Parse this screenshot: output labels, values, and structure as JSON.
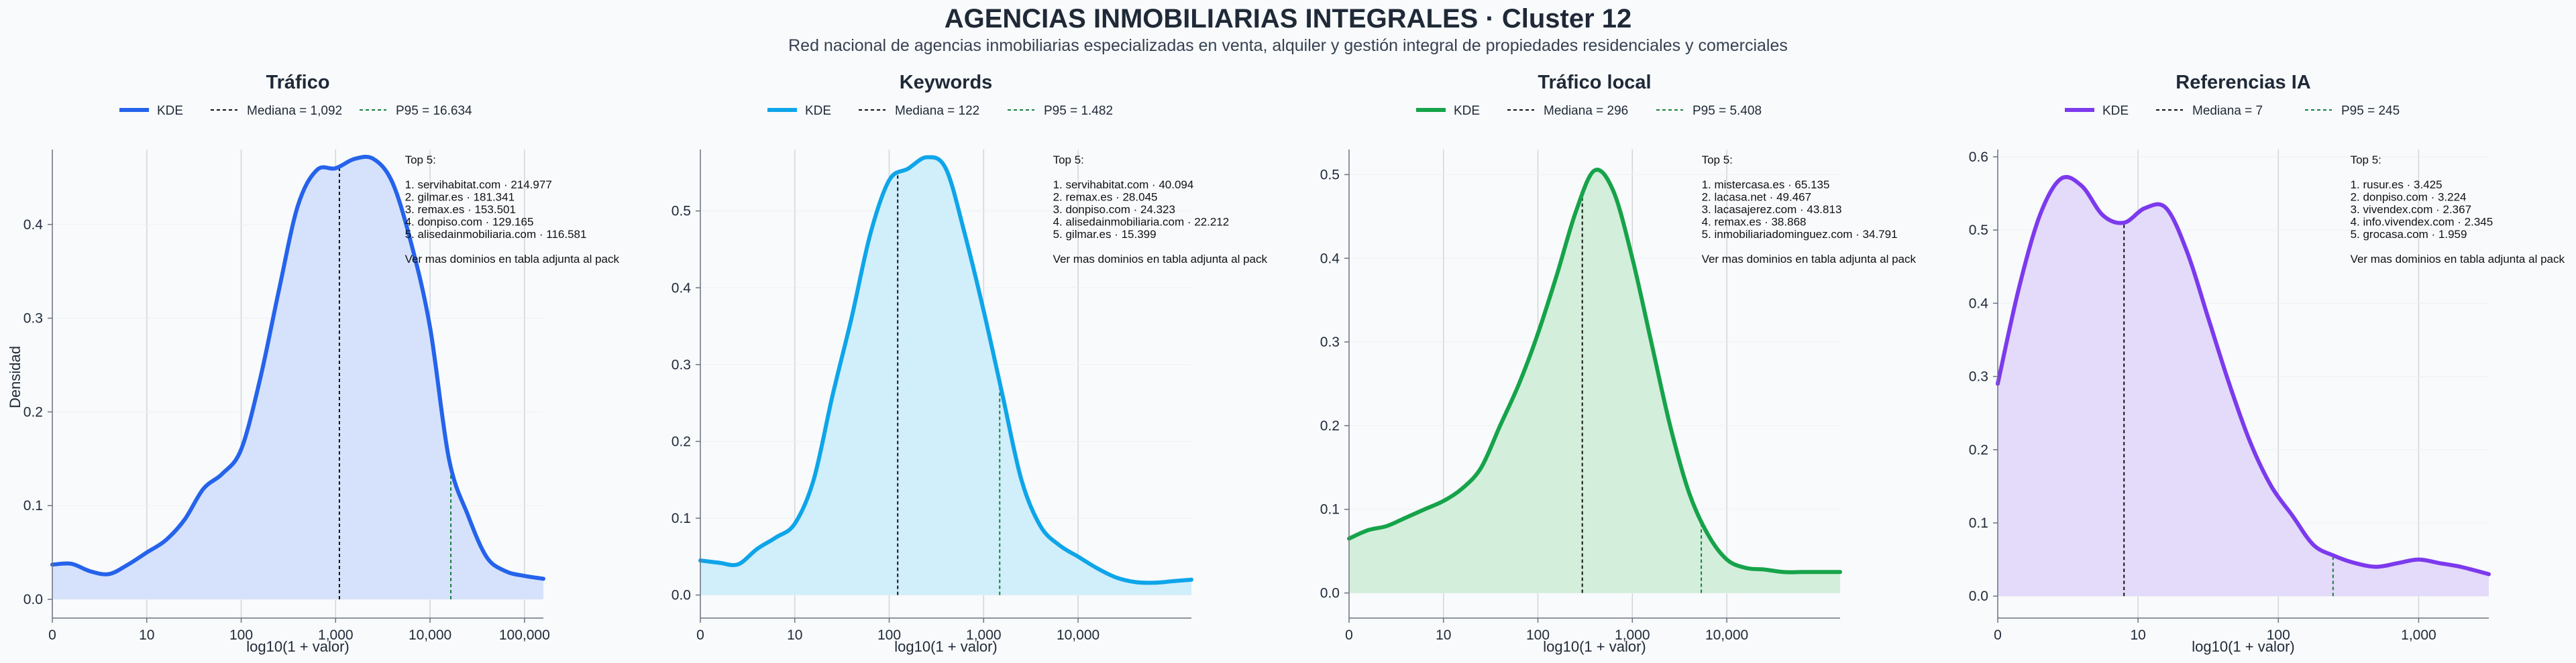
{
  "header": {
    "title": "AGENCIAS INMOBILIARIAS INTEGRALES · Cluster 12",
    "subtitle": "Red nacional de agencias inmobiliarias especializadas en venta, alquiler y gestión integral de propiedades residenciales y comerciales"
  },
  "colors": {
    "median_line": "#111111",
    "p95_line": "#15803d",
    "grid": "#d1d5db",
    "axis": "#6b7280"
  },
  "chart_data": [
    {
      "type": "area",
      "title": "Tráfico",
      "xlabel": "log10(1 + valor)",
      "ylabel": "Densidad",
      "color": "#2563eb",
      "fill": "#d6e2fb",
      "xlim": [
        0,
        5.2
      ],
      "ylim": [
        -0.02,
        0.48
      ],
      "x_ticks": [
        0,
        1,
        2,
        3,
        4,
        5
      ],
      "x_tick_labels": [
        "0",
        "10",
        "100",
        "1,000",
        "10,000",
        "100,000"
      ],
      "y_ticks": [
        0.0,
        0.1,
        0.2,
        0.3,
        0.4
      ],
      "y_tick_labels": [
        "0.0",
        "0.1",
        "0.2",
        "0.3",
        "0.4"
      ],
      "legend": [
        "KDE",
        "Mediana = 1,092",
        "P95 = 16.634"
      ],
      "median_x": 3.04,
      "p95_x": 4.22,
      "annotation": [
        "Top 5:",
        "",
        "1. servihabitat.com · 214.977",
        "2. gilmar.es · 181.341",
        "3. remax.es · 153.501",
        "4. donpiso.com · 129.165",
        "5. alisedainmobiliaria.com · 116.581",
        "",
        "Ver mas dominios en tabla adjunta al pack"
      ],
      "x": [
        0,
        0.2,
        0.4,
        0.6,
        0.8,
        1.0,
        1.2,
        1.4,
        1.6,
        1.8,
        2.0,
        2.2,
        2.4,
        2.6,
        2.8,
        3.0,
        3.2,
        3.4,
        3.6,
        3.8,
        4.0,
        4.2,
        4.4,
        4.6,
        4.8,
        5.0,
        5.2
      ],
      "y": [
        0.037,
        0.038,
        0.03,
        0.027,
        0.037,
        0.05,
        0.063,
        0.085,
        0.118,
        0.134,
        0.16,
        0.235,
        0.33,
        0.42,
        0.458,
        0.46,
        0.47,
        0.47,
        0.445,
        0.38,
        0.29,
        0.15,
        0.09,
        0.045,
        0.03,
        0.025,
        0.022
      ]
    },
    {
      "type": "area",
      "title": "Keywords",
      "xlabel": "log10(1 + valor)",
      "ylabel": "",
      "color": "#0ea5e9",
      "fill": "#d1eefb",
      "xlim": [
        0,
        5.2
      ],
      "ylim": [
        -0.03,
        0.58
      ],
      "x_ticks": [
        0,
        1,
        2,
        3,
        4
      ],
      "x_tick_labels": [
        "0",
        "10",
        "100",
        "1,000",
        "10,000"
      ],
      "y_ticks": [
        0.0,
        0.1,
        0.2,
        0.3,
        0.4,
        0.5
      ],
      "y_tick_labels": [
        "0.0",
        "0.1",
        "0.2",
        "0.3",
        "0.4",
        "0.5"
      ],
      "legend": [
        "KDE",
        "Mediana = 122",
        "P95 = 1.482"
      ],
      "median_x": 2.09,
      "p95_x": 3.17,
      "annotation": [
        "Top 5:",
        "",
        "1. servihabitat.com · 40.094",
        "2. remax.es · 28.045",
        "3. donpiso.com · 24.323",
        "4. alisedainmobiliaria.com · 22.212",
        "5. gilmar.es · 15.399",
        "",
        "Ver mas dominios en tabla adjunta al pack"
      ],
      "x": [
        0,
        0.2,
        0.4,
        0.6,
        0.8,
        1.0,
        1.2,
        1.4,
        1.6,
        1.8,
        2.0,
        2.2,
        2.4,
        2.6,
        2.8,
        3.0,
        3.2,
        3.4,
        3.6,
        3.8,
        4.0,
        4.2,
        4.4,
        4.6,
        4.8,
        5.0,
        5.2
      ],
      "y": [
        0.045,
        0.042,
        0.04,
        0.06,
        0.075,
        0.093,
        0.15,
        0.26,
        0.36,
        0.47,
        0.54,
        0.555,
        0.57,
        0.555,
        0.47,
        0.37,
        0.26,
        0.15,
        0.09,
        0.065,
        0.05,
        0.035,
        0.023,
        0.017,
        0.016,
        0.018,
        0.02
      ]
    },
    {
      "type": "area",
      "title": "Tráfico local",
      "xlabel": "log10(1 + valor)",
      "ylabel": "",
      "color": "#16a34a",
      "fill": "#d3eedb",
      "xlim": [
        0,
        5.2
      ],
      "ylim": [
        -0.03,
        0.53
      ],
      "x_ticks": [
        0,
        1,
        2,
        3,
        4
      ],
      "x_tick_labels": [
        "0",
        "10",
        "100",
        "1,000",
        "10,000"
      ],
      "y_ticks": [
        0.0,
        0.1,
        0.2,
        0.3,
        0.4,
        0.5
      ],
      "y_tick_labels": [
        "0.0",
        "0.1",
        "0.2",
        "0.3",
        "0.4",
        "0.5"
      ],
      "legend": [
        "KDE",
        "Mediana = 296",
        "P95 = 5.408"
      ],
      "median_x": 2.47,
      "p95_x": 3.73,
      "annotation": [
        "Top 5:",
        "",
        "1. mistercasa.es · 65.135",
        "2. lacasa.net · 49.467",
        "3. lacasajerez.com · 43.813",
        "4. remax.es · 38.868",
        "5. inmobiliariadominguez.com · 34.791",
        "",
        "Ver mas dominios en tabla adjunta al pack"
      ],
      "x": [
        0,
        0.2,
        0.4,
        0.6,
        0.8,
        1.0,
        1.2,
        1.4,
        1.6,
        1.8,
        2.0,
        2.2,
        2.4,
        2.6,
        2.8,
        3.0,
        3.2,
        3.4,
        3.6,
        3.8,
        4.0,
        4.2,
        4.4,
        4.6,
        4.8,
        5.0,
        5.2
      ],
      "y": [
        0.065,
        0.075,
        0.08,
        0.09,
        0.1,
        0.11,
        0.125,
        0.15,
        0.2,
        0.25,
        0.31,
        0.38,
        0.455,
        0.505,
        0.48,
        0.4,
        0.3,
        0.2,
        0.12,
        0.07,
        0.04,
        0.03,
        0.028,
        0.025,
        0.025,
        0.025,
        0.025
      ]
    },
    {
      "type": "area",
      "title": "Referencias IA",
      "xlabel": "log10(1 + valor)",
      "ylabel": "",
      "color": "#7c3aed",
      "fill": "#e4daf9",
      "xlim": [
        0,
        3.5
      ],
      "ylim": [
        -0.03,
        0.61
      ],
      "x_ticks": [
        0,
        1,
        2,
        3
      ],
      "x_tick_labels": [
        "0",
        "10",
        "100",
        "1,000"
      ],
      "y_ticks": [
        0.0,
        0.1,
        0.2,
        0.3,
        0.4,
        0.5,
        0.6
      ],
      "y_tick_labels": [
        "0.0",
        "0.1",
        "0.2",
        "0.3",
        "0.4",
        "0.5",
        "0.6"
      ],
      "legend": [
        "KDE",
        "Mediana = 7",
        "P95 = 245"
      ],
      "median_x": 0.9,
      "p95_x": 2.39,
      "annotation": [
        "Top 5:",
        "",
        "1. rusur.es · 3.425",
        "2. donpiso.com · 3.224",
        "3. vivendex.com · 2.367",
        "4. info.vivendex.com · 2.345",
        "5. grocasa.com · 1.959",
        "",
        "Ver mas dominios en tabla adjunta al pack"
      ],
      "x": [
        0,
        0.15,
        0.3,
        0.45,
        0.6,
        0.75,
        0.9,
        1.05,
        1.2,
        1.35,
        1.5,
        1.65,
        1.8,
        1.95,
        2.1,
        2.25,
        2.4,
        2.55,
        2.7,
        2.85,
        3.0,
        3.15,
        3.3,
        3.5
      ],
      "y": [
        0.29,
        0.42,
        0.52,
        0.57,
        0.56,
        0.52,
        0.51,
        0.53,
        0.53,
        0.47,
        0.38,
        0.29,
        0.21,
        0.15,
        0.11,
        0.07,
        0.055,
        0.045,
        0.04,
        0.045,
        0.05,
        0.045,
        0.04,
        0.03
      ]
    }
  ]
}
